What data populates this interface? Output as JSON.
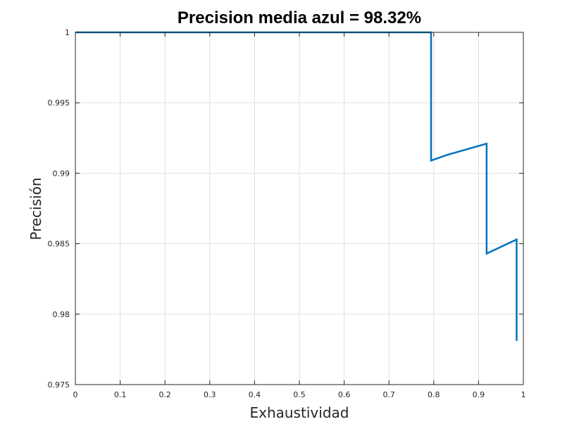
{
  "chart_data": {
    "type": "line",
    "title": "Precision media azul = 98.32%",
    "xlabel": "Exhaustividad",
    "ylabel": "Precisión",
    "xlim": [
      0,
      1
    ],
    "ylim": [
      0.975,
      1
    ],
    "grid": true,
    "x_ticks": [
      "0",
      "0.1",
      "0.2",
      "0.3",
      "0.4",
      "0.5",
      "0.6",
      "0.7",
      "0.8",
      "0.9",
      "1"
    ],
    "y_ticks": [
      "0.975",
      "0.98",
      "0.985",
      "0.99",
      "0.995",
      "1"
    ],
    "series": [
      {
        "color": "#0072BD",
        "x": [
          0,
          0.794,
          0.794,
          0.83,
          0.918,
          0.918,
          0.985,
          0.985
        ],
        "y": [
          1.0,
          1.0,
          0.9909,
          0.9913,
          0.9921,
          0.9843,
          0.9853,
          0.9781
        ]
      }
    ]
  }
}
